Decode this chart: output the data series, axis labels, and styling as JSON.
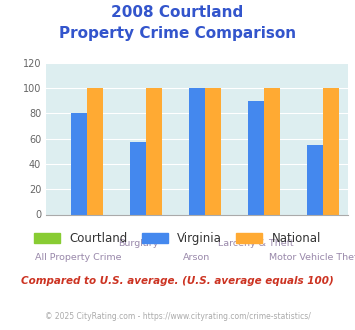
{
  "title_line1": "2008 Courtland",
  "title_line2": "Property Crime Comparison",
  "categories": [
    "All Property Crime",
    "Burglary",
    "Arson",
    "Larceny & Theft",
    "Motor Vehicle Theft"
  ],
  "categories_row1": [
    "",
    "Burglary",
    "",
    "Larceny & Theft",
    ""
  ],
  "categories_row2": [
    "All Property Crime",
    "",
    "Arson",
    "",
    "Motor Vehicle Theft"
  ],
  "courtland_values": [
    0,
    0,
    0,
    0,
    0
  ],
  "virginia_values": [
    80,
    57,
    100,
    90,
    55
  ],
  "national_values": [
    100,
    100,
    100,
    100,
    100
  ],
  "courtland_color": "#88cc33",
  "virginia_color": "#4488ee",
  "national_color": "#ffaa33",
  "ylim": [
    0,
    120
  ],
  "yticks": [
    0,
    20,
    40,
    60,
    80,
    100,
    120
  ],
  "plot_bg": "#ddeef0",
  "title_color": "#3355cc",
  "label_color": "#9988aa",
  "legend_label_courtland": "Courtland",
  "legend_label_virginia": "Virginia",
  "legend_label_national": "National",
  "note_text": "Compared to U.S. average. (U.S. average equals 100)",
  "credit_text": "© 2025 CityRating.com - https://www.cityrating.com/crime-statistics/",
  "note_color": "#cc3322",
  "credit_color": "#aaaaaa",
  "credit_link_color": "#4488ee"
}
